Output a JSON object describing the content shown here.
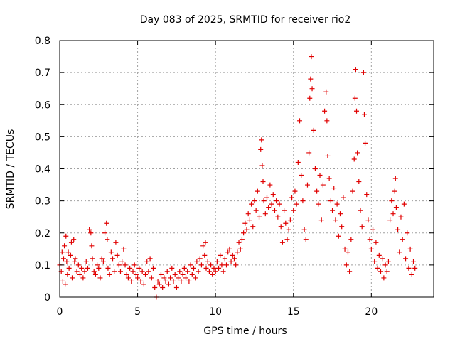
{
  "chart_data": {
    "type": "scatter",
    "title": "Day 083 of 2025, SRMTID for receiver rio2",
    "xlabel": "GPS time / hours",
    "ylabel": "SRMTID / TECUs",
    "xlim": [
      0,
      24
    ],
    "ylim": [
      0,
      0.8
    ],
    "grid": true,
    "marker": "+",
    "colors": {
      "series": "#e00000",
      "grid": "#a0a0a0",
      "axis": "#000000"
    },
    "x_ticks": [
      {
        "value": 0,
        "label": "0"
      },
      {
        "value": 5,
        "label": "5"
      },
      {
        "value": 10,
        "label": "10"
      },
      {
        "value": 15,
        "label": "15"
      },
      {
        "value": 20,
        "label": "20"
      }
    ],
    "y_ticks": [
      {
        "value": 0,
        "label": "0"
      },
      {
        "value": 0.1,
        "label": "0.1"
      },
      {
        "value": 0.2,
        "label": "0.2"
      },
      {
        "value": 0.3,
        "label": "0.3"
      },
      {
        "value": 0.4,
        "label": "0.4"
      },
      {
        "value": 0.5,
        "label": "0.5"
      },
      {
        "value": 0.6,
        "label": "0.6"
      },
      {
        "value": 0.7,
        "label": "0.7"
      },
      {
        "value": 0.8,
        "label": "0.8"
      }
    ],
    "series": [
      {
        "name": "SRMTID",
        "points": [
          [
            0.0,
            0.1
          ],
          [
            0.1,
            0.08
          ],
          [
            0.15,
            0.14
          ],
          [
            0.2,
            0.05
          ],
          [
            0.25,
            0.12
          ],
          [
            0.3,
            0.16
          ],
          [
            0.35,
            0.04
          ],
          [
            0.4,
            0.19
          ],
          [
            0.45,
            0.11
          ],
          [
            0.5,
            0.07
          ],
          [
            0.55,
            0.14
          ],
          [
            0.6,
            0.09
          ],
          [
            0.7,
            0.13
          ],
          [
            0.75,
            0.17
          ],
          [
            0.8,
            0.06
          ],
          [
            0.9,
            0.18
          ],
          [
            0.95,
            0.11
          ],
          [
            1.0,
            0.12
          ],
          [
            1.1,
            0.08
          ],
          [
            1.2,
            0.1
          ],
          [
            1.3,
            0.07
          ],
          [
            1.4,
            0.09
          ],
          [
            1.5,
            0.06
          ],
          [
            1.6,
            0.08
          ],
          [
            1.7,
            0.11
          ],
          [
            1.8,
            0.09
          ],
          [
            1.9,
            0.21
          ],
          [
            2.0,
            0.2
          ],
          [
            2.05,
            0.16
          ],
          [
            2.1,
            0.12
          ],
          [
            2.2,
            0.08
          ],
          [
            2.3,
            0.07
          ],
          [
            2.4,
            0.1
          ],
          [
            2.5,
            0.09
          ],
          [
            2.6,
            0.06
          ],
          [
            2.7,
            0.12
          ],
          [
            2.8,
            0.11
          ],
          [
            2.9,
            0.2
          ],
          [
            3.0,
            0.23
          ],
          [
            3.05,
            0.18
          ],
          [
            3.1,
            0.09
          ],
          [
            3.2,
            0.07
          ],
          [
            3.3,
            0.14
          ],
          [
            3.4,
            0.12
          ],
          [
            3.5,
            0.08
          ],
          [
            3.6,
            0.17
          ],
          [
            3.7,
            0.13
          ],
          [
            3.8,
            0.1
          ],
          [
            3.9,
            0.08
          ],
          [
            4.0,
            0.11
          ],
          [
            4.1,
            0.15
          ],
          [
            4.2,
            0.1
          ],
          [
            4.3,
            0.07
          ],
          [
            4.4,
            0.06
          ],
          [
            4.5,
            0.09
          ],
          [
            4.6,
            0.05
          ],
          [
            4.7,
            0.08
          ],
          [
            4.8,
            0.1
          ],
          [
            4.9,
            0.07
          ],
          [
            5.0,
            0.06
          ],
          [
            5.1,
            0.09
          ],
          [
            5.2,
            0.05
          ],
          [
            5.3,
            0.08
          ],
          [
            5.4,
            0.04
          ],
          [
            5.5,
            0.07
          ],
          [
            5.6,
            0.11
          ],
          [
            5.7,
            0.08
          ],
          [
            5.8,
            0.12
          ],
          [
            5.9,
            0.06
          ],
          [
            6.0,
            0.09
          ],
          [
            6.1,
            0.03
          ],
          [
            6.2,
            0.0
          ],
          [
            6.3,
            0.05
          ],
          [
            6.4,
            0.04
          ],
          [
            6.5,
            0.07
          ],
          [
            6.6,
            0.03
          ],
          [
            6.7,
            0.06
          ],
          [
            6.8,
            0.05
          ],
          [
            6.9,
            0.08
          ],
          [
            7.0,
            0.04
          ],
          [
            7.1,
            0.06
          ],
          [
            7.2,
            0.09
          ],
          [
            7.3,
            0.05
          ],
          [
            7.4,
            0.07
          ],
          [
            7.5,
            0.03
          ],
          [
            7.6,
            0.06
          ],
          [
            7.7,
            0.08
          ],
          [
            7.8,
            0.05
          ],
          [
            7.9,
            0.07
          ],
          [
            8.0,
            0.09
          ],
          [
            8.1,
            0.06
          ],
          [
            8.2,
            0.08
          ],
          [
            8.3,
            0.05
          ],
          [
            8.4,
            0.1
          ],
          [
            8.5,
            0.07
          ],
          [
            8.6,
            0.09
          ],
          [
            8.7,
            0.06
          ],
          [
            8.8,
            0.11
          ],
          [
            8.9,
            0.08
          ],
          [
            9.0,
            0.12
          ],
          [
            9.1,
            0.1
          ],
          [
            9.2,
            0.16
          ],
          [
            9.3,
            0.13
          ],
          [
            9.35,
            0.17
          ],
          [
            9.4,
            0.09
          ],
          [
            9.5,
            0.11
          ],
          [
            9.6,
            0.08
          ],
          [
            9.7,
            0.1
          ],
          [
            9.8,
            0.07
          ],
          [
            9.9,
            0.09
          ],
          [
            10.0,
            0.08
          ],
          [
            10.1,
            0.11
          ],
          [
            10.2,
            0.09
          ],
          [
            10.3,
            0.13
          ],
          [
            10.4,
            0.1
          ],
          [
            10.5,
            0.08
          ],
          [
            10.6,
            0.12
          ],
          [
            10.7,
            0.1
          ],
          [
            10.8,
            0.14
          ],
          [
            10.9,
            0.15
          ],
          [
            11.0,
            0.11
          ],
          [
            11.1,
            0.13
          ],
          [
            11.2,
            0.12
          ],
          [
            11.3,
            0.1
          ],
          [
            11.4,
            0.14
          ],
          [
            11.5,
            0.17
          ],
          [
            11.6,
            0.15
          ],
          [
            11.7,
            0.18
          ],
          [
            11.8,
            0.2
          ],
          [
            11.9,
            0.23
          ],
          [
            12.0,
            0.21
          ],
          [
            12.1,
            0.26
          ],
          [
            12.2,
            0.24
          ],
          [
            12.3,
            0.29
          ],
          [
            12.4,
            0.22
          ],
          [
            12.5,
            0.3
          ],
          [
            12.6,
            0.27
          ],
          [
            12.7,
            0.33
          ],
          [
            12.8,
            0.25
          ],
          [
            12.9,
            0.46
          ],
          [
            12.95,
            0.49
          ],
          [
            13.0,
            0.41
          ],
          [
            13.05,
            0.36
          ],
          [
            13.1,
            0.3
          ],
          [
            13.2,
            0.26
          ],
          [
            13.3,
            0.31
          ],
          [
            13.4,
            0.28
          ],
          [
            13.5,
            0.35
          ],
          [
            13.6,
            0.29
          ],
          [
            13.7,
            0.32
          ],
          [
            13.8,
            0.27
          ],
          [
            13.9,
            0.3
          ],
          [
            14.0,
            0.25
          ],
          [
            14.1,
            0.29
          ],
          [
            14.2,
            0.22
          ],
          [
            14.3,
            0.17
          ],
          [
            14.4,
            0.27
          ],
          [
            14.5,
            0.23
          ],
          [
            14.6,
            0.18
          ],
          [
            14.7,
            0.21
          ],
          [
            14.8,
            0.24
          ],
          [
            14.9,
            0.31
          ],
          [
            15.0,
            0.27
          ],
          [
            15.1,
            0.33
          ],
          [
            15.2,
            0.29
          ],
          [
            15.3,
            0.42
          ],
          [
            15.4,
            0.55
          ],
          [
            15.5,
            0.38
          ],
          [
            15.6,
            0.3
          ],
          [
            15.7,
            0.21
          ],
          [
            15.8,
            0.18
          ],
          [
            15.9,
            0.35
          ],
          [
            16.0,
            0.45
          ],
          [
            16.05,
            0.62
          ],
          [
            16.1,
            0.68
          ],
          [
            16.15,
            0.75
          ],
          [
            16.2,
            0.65
          ],
          [
            16.3,
            0.52
          ],
          [
            16.4,
            0.4
          ],
          [
            16.5,
            0.33
          ],
          [
            16.6,
            0.29
          ],
          [
            16.7,
            0.38
          ],
          [
            16.8,
            0.24
          ],
          [
            16.9,
            0.35
          ],
          [
            17.0,
            0.58
          ],
          [
            17.1,
            0.64
          ],
          [
            17.15,
            0.55
          ],
          [
            17.2,
            0.44
          ],
          [
            17.3,
            0.37
          ],
          [
            17.4,
            0.3
          ],
          [
            17.5,
            0.27
          ],
          [
            17.6,
            0.34
          ],
          [
            17.7,
            0.24
          ],
          [
            17.8,
            0.29
          ],
          [
            17.9,
            0.19
          ],
          [
            18.0,
            0.26
          ],
          [
            18.1,
            0.22
          ],
          [
            18.2,
            0.31
          ],
          [
            18.3,
            0.15
          ],
          [
            18.4,
            0.1
          ],
          [
            18.5,
            0.14
          ],
          [
            18.6,
            0.08
          ],
          [
            18.7,
            0.18
          ],
          [
            18.8,
            0.33
          ],
          [
            18.9,
            0.43
          ],
          [
            18.95,
            0.62
          ],
          [
            19.0,
            0.71
          ],
          [
            19.05,
            0.58
          ],
          [
            19.1,
            0.45
          ],
          [
            19.2,
            0.36
          ],
          [
            19.3,
            0.27
          ],
          [
            19.4,
            0.22
          ],
          [
            19.5,
            0.7
          ],
          [
            19.55,
            0.57
          ],
          [
            19.6,
            0.48
          ],
          [
            19.7,
            0.32
          ],
          [
            19.8,
            0.24
          ],
          [
            19.9,
            0.18
          ],
          [
            20.0,
            0.15
          ],
          [
            20.1,
            0.21
          ],
          [
            20.2,
            0.11
          ],
          [
            20.3,
            0.17
          ],
          [
            20.4,
            0.09
          ],
          [
            20.5,
            0.13
          ],
          [
            20.6,
            0.08
          ],
          [
            20.7,
            0.12
          ],
          [
            20.8,
            0.06
          ],
          [
            20.9,
            0.1
          ],
          [
            21.0,
            0.08
          ],
          [
            21.1,
            0.11
          ],
          [
            21.2,
            0.24
          ],
          [
            21.3,
            0.3
          ],
          [
            21.4,
            0.26
          ],
          [
            21.5,
            0.33
          ],
          [
            21.55,
            0.37
          ],
          [
            21.6,
            0.28
          ],
          [
            21.7,
            0.21
          ],
          [
            21.8,
            0.14
          ],
          [
            21.9,
            0.25
          ],
          [
            22.0,
            0.18
          ],
          [
            22.1,
            0.29
          ],
          [
            22.2,
            0.12
          ],
          [
            22.3,
            0.2
          ],
          [
            22.4,
            0.09
          ],
          [
            22.5,
            0.15
          ],
          [
            22.6,
            0.07
          ],
          [
            22.7,
            0.11
          ],
          [
            22.8,
            0.09
          ]
        ]
      }
    ]
  }
}
